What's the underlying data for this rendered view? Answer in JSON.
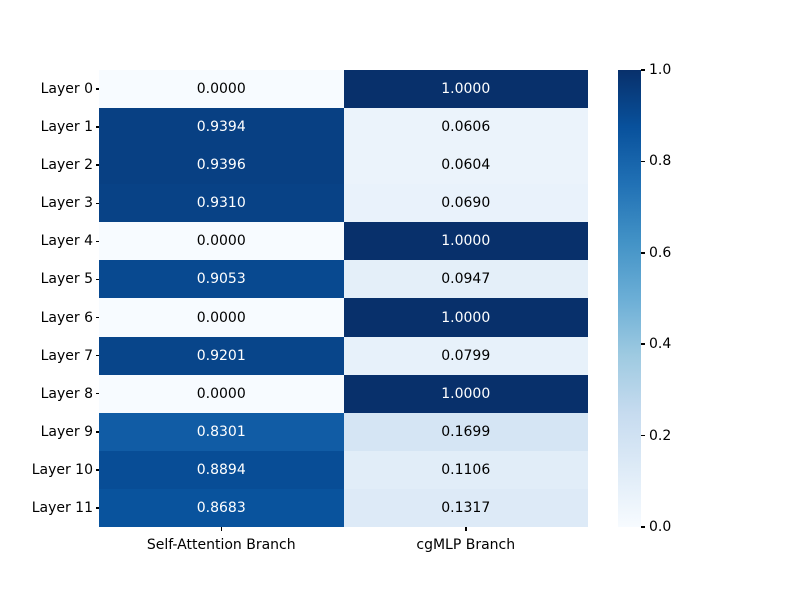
{
  "chart_data": {
    "type": "heatmap",
    "title": "",
    "xlabel": "",
    "ylabel": "",
    "x_tick_labels": [
      "Self-Attention Branch",
      "cgMLP Branch"
    ],
    "y_tick_labels": [
      "Layer 0",
      "Layer 1",
      "Layer 2",
      "Layer 3",
      "Layer 4",
      "Layer 5",
      "Layer 6",
      "Layer 7",
      "Layer 8",
      "Layer 9",
      "Layer 10",
      "Layer 11"
    ],
    "values": [
      [
        0.0,
        1.0
      ],
      [
        0.9394,
        0.0606
      ],
      [
        0.9396,
        0.0604
      ],
      [
        0.931,
        0.069
      ],
      [
        0.0,
        1.0
      ],
      [
        0.9053,
        0.0947
      ],
      [
        0.0,
        1.0
      ],
      [
        0.9201,
        0.0799
      ],
      [
        0.0,
        1.0
      ],
      [
        0.8301,
        0.1699
      ],
      [
        0.8894,
        0.1106
      ],
      [
        0.8683,
        0.1317
      ]
    ],
    "cell_label_decimals": 4,
    "value_range": [
      0.0,
      1.0
    ],
    "grid": false,
    "legend": "none",
    "colormap": {
      "name": "Blues",
      "stops": [
        "#f7fbff",
        "#deebf7",
        "#c6dbef",
        "#9ecae1",
        "#6baed6",
        "#4292c6",
        "#2171b5",
        "#08519c",
        "#08306b"
      ]
    },
    "colorbar": {
      "position": "right",
      "tick_values": [
        1.0,
        0.8,
        0.6,
        0.4,
        0.2,
        0.0
      ],
      "tick_labels": [
        "1.0",
        "0.8",
        "0.6",
        "0.4",
        "0.2",
        "0.0"
      ]
    },
    "annotation_text_colors": {
      "on_light": "#000000",
      "on_dark": "#ffffff"
    },
    "annotation_dark_threshold": 0.5,
    "tick_color": "#000000",
    "background_color": "#ffffff"
  }
}
